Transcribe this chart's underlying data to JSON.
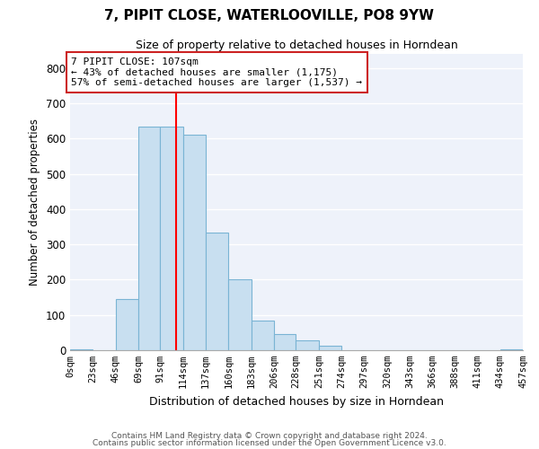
{
  "title": "7, PIPIT CLOSE, WATERLOOVILLE, PO8 9YW",
  "subtitle": "Size of property relative to detached houses in Horndean",
  "xlabel": "Distribution of detached houses by size in Horndean",
  "ylabel": "Number of detached properties",
  "bin_edges": [
    0,
    23,
    46,
    69,
    91,
    114,
    137,
    160,
    183,
    206,
    228,
    251,
    274,
    297,
    320,
    343,
    366,
    388,
    411,
    434,
    457
  ],
  "bin_labels": [
    "0sqm",
    "23sqm",
    "46sqm",
    "69sqm",
    "91sqm",
    "114sqm",
    "137sqm",
    "160sqm",
    "183sqm",
    "206sqm",
    "228sqm",
    "251sqm",
    "274sqm",
    "297sqm",
    "320sqm",
    "343sqm",
    "366sqm",
    "388sqm",
    "411sqm",
    "434sqm",
    "457sqm"
  ],
  "counts": [
    2,
    0,
    145,
    635,
    635,
    610,
    333,
    200,
    84,
    46,
    27,
    12,
    0,
    0,
    0,
    0,
    0,
    0,
    0,
    3
  ],
  "bar_color": "#c8dff0",
  "bar_edge_color": "#7ab4d4",
  "vline_x": 107,
  "vline_color": "red",
  "annotation_line1": "7 PIPIT CLOSE: 107sqm",
  "annotation_line2": "← 43% of detached houses are smaller (1,175)",
  "annotation_line3": "57% of semi-detached houses are larger (1,537) →",
  "ylim": [
    0,
    840
  ],
  "yticks": [
    0,
    100,
    200,
    300,
    400,
    500,
    600,
    700,
    800
  ],
  "footer_line1": "Contains HM Land Registry data © Crown copyright and database right 2024.",
  "footer_line2": "Contains public sector information licensed under the Open Government Licence v3.0.",
  "background_color": "#eef2fa",
  "grid_color": "#ffffff"
}
